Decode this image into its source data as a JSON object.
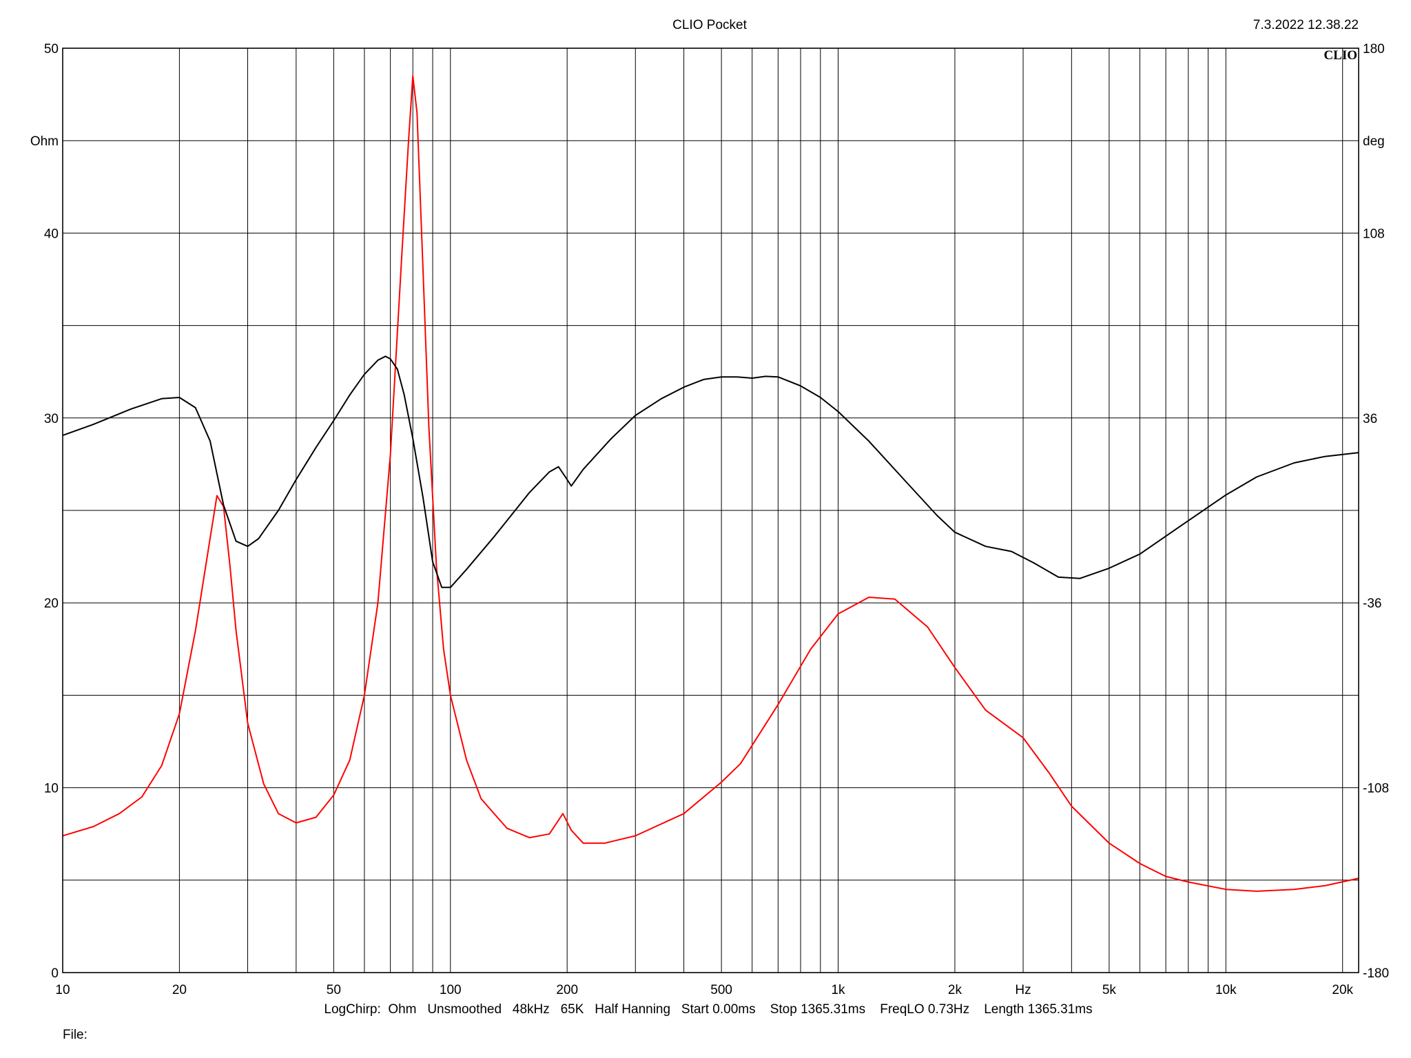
{
  "header": {
    "title": "CLIO Pocket",
    "datetime": "7.3.2022 12.38.22",
    "brand": "CLIO"
  },
  "footer": {
    "settings": "LogChirp:  Ohm   Unsmoothed   48kHz   65K   Half Hanning   Start 0.00ms    Stop 1365.31ms    FreqLO 0.73Hz    Length 1365.31ms",
    "file_label": "File:"
  },
  "chart_data": {
    "type": "line",
    "x_scale": "log",
    "xlim": [
      10,
      22000
    ],
    "x_ticks": [
      {
        "value": 10,
        "label": "10"
      },
      {
        "value": 20,
        "label": "20"
      },
      {
        "value": 50,
        "label": "50"
      },
      {
        "value": 100,
        "label": "100"
      },
      {
        "value": 200,
        "label": "200"
      },
      {
        "value": 500,
        "label": "500"
      },
      {
        "value": 1000,
        "label": "1k"
      },
      {
        "value": 2000,
        "label": "2k"
      },
      {
        "value": 5000,
        "label": "5k"
      },
      {
        "value": 10000,
        "label": "10k"
      },
      {
        "value": 20000,
        "label": "20k"
      }
    ],
    "x_unit_label": "Hz",
    "x_unit_position": 3000,
    "y_left": {
      "unit": "Ohm",
      "lim": [
        0,
        50
      ],
      "ticks": [
        0,
        10,
        20,
        30,
        40,
        50
      ],
      "gridlines": [
        0,
        5,
        10,
        15,
        20,
        25,
        30,
        35,
        40,
        45,
        50
      ]
    },
    "y_right": {
      "unit": "deg",
      "lim": [
        -180,
        180
      ],
      "ticks": [
        -180,
        -108,
        -36,
        36,
        108,
        180
      ]
    },
    "grid": true,
    "series": [
      {
        "axis": "left",
        "color": "#ff0000",
        "points": [
          [
            10,
            7.4
          ],
          [
            12,
            7.9
          ],
          [
            14,
            8.6
          ],
          [
            16,
            9.5
          ],
          [
            18,
            11.2
          ],
          [
            20,
            14.0
          ],
          [
            22,
            18.5
          ],
          [
            24,
            23.5
          ],
          [
            25,
            25.8
          ],
          [
            26,
            25.2
          ],
          [
            27,
            22.0
          ],
          [
            28,
            18.5
          ],
          [
            30,
            13.5
          ],
          [
            33,
            10.2
          ],
          [
            36,
            8.6
          ],
          [
            40,
            8.1
          ],
          [
            45,
            8.4
          ],
          [
            50,
            9.6
          ],
          [
            55,
            11.5
          ],
          [
            60,
            15.0
          ],
          [
            65,
            20.0
          ],
          [
            70,
            28.0
          ],
          [
            75,
            39.0
          ],
          [
            78,
            45.0
          ],
          [
            80,
            48.5
          ],
          [
            82,
            46.5
          ],
          [
            85,
            38.0
          ],
          [
            88,
            29.5
          ],
          [
            92,
            22.0
          ],
          [
            96,
            17.5
          ],
          [
            100,
            15.0
          ],
          [
            110,
            11.5
          ],
          [
            120,
            9.4
          ],
          [
            140,
            7.8
          ],
          [
            160,
            7.3
          ],
          [
            180,
            7.5
          ],
          [
            195,
            8.6
          ],
          [
            205,
            7.7
          ],
          [
            220,
            7.0
          ],
          [
            250,
            7.0
          ],
          [
            300,
            7.4
          ],
          [
            400,
            8.6
          ],
          [
            500,
            10.3
          ],
          [
            560,
            11.3
          ],
          [
            700,
            14.5
          ],
          [
            850,
            17.5
          ],
          [
            1000,
            19.4
          ],
          [
            1200,
            20.3
          ],
          [
            1400,
            20.2
          ],
          [
            1700,
            18.7
          ],
          [
            2000,
            16.5
          ],
          [
            2400,
            14.2
          ],
          [
            3000,
            12.7
          ],
          [
            3500,
            10.8
          ],
          [
            4000,
            9.0
          ],
          [
            5000,
            7.0
          ],
          [
            6000,
            5.9
          ],
          [
            7000,
            5.2
          ],
          [
            8000,
            4.9
          ],
          [
            10000,
            4.5
          ],
          [
            12000,
            4.4
          ],
          [
            15000,
            4.5
          ],
          [
            18000,
            4.7
          ],
          [
            22000,
            5.1
          ]
        ]
      },
      {
        "axis": "right",
        "color": "#000000",
        "points": [
          [
            10,
            29.2
          ],
          [
            12,
            33.5
          ],
          [
            15,
            39.5
          ],
          [
            18,
            43.5
          ],
          [
            20,
            44.0
          ],
          [
            22,
            40.0
          ],
          [
            24,
            27.0
          ],
          [
            26,
            2.0
          ],
          [
            28,
            -12.0
          ],
          [
            30,
            -14.0
          ],
          [
            32,
            -11.0
          ],
          [
            36,
            0.0
          ],
          [
            40,
            12.0
          ],
          [
            45,
            24.5
          ],
          [
            50,
            35.0
          ],
          [
            55,
            45.0
          ],
          [
            60,
            53.0
          ],
          [
            65,
            58.5
          ],
          [
            68,
            60.0
          ],
          [
            70,
            59.0
          ],
          [
            73,
            55.0
          ],
          [
            76,
            45.0
          ],
          [
            80,
            28.0
          ],
          [
            85,
            5.0
          ],
          [
            90,
            -20.0
          ],
          [
            95,
            -30.0
          ],
          [
            100,
            -30.0
          ],
          [
            110,
            -23.0
          ],
          [
            130,
            -10.0
          ],
          [
            160,
            7.0
          ],
          [
            180,
            15.0
          ],
          [
            190,
            17.0
          ],
          [
            198,
            13.0
          ],
          [
            205,
            9.5
          ],
          [
            220,
            16.0
          ],
          [
            260,
            28.0
          ],
          [
            300,
            37.0
          ],
          [
            350,
            43.5
          ],
          [
            400,
            48.0
          ],
          [
            450,
            51.0
          ],
          [
            500,
            52.0
          ],
          [
            550,
            52.0
          ],
          [
            600,
            51.5
          ],
          [
            650,
            52.2
          ],
          [
            700,
            52.0
          ],
          [
            800,
            48.5
          ],
          [
            900,
            44.0
          ],
          [
            1000,
            38.5
          ],
          [
            1200,
            27.0
          ],
          [
            1500,
            11.0
          ],
          [
            1800,
            -2.0
          ],
          [
            2000,
            -8.5
          ],
          [
            2400,
            -14.0
          ],
          [
            2800,
            -16.0
          ],
          [
            3200,
            -20.5
          ],
          [
            3700,
            -26.0
          ],
          [
            4200,
            -26.5
          ],
          [
            5000,
            -22.5
          ],
          [
            6000,
            -17.0
          ],
          [
            8000,
            -4.0
          ],
          [
            10000,
            6.0
          ],
          [
            12000,
            13.0
          ],
          [
            15000,
            18.5
          ],
          [
            18000,
            21.0
          ],
          [
            22000,
            22.5
          ]
        ]
      }
    ]
  }
}
